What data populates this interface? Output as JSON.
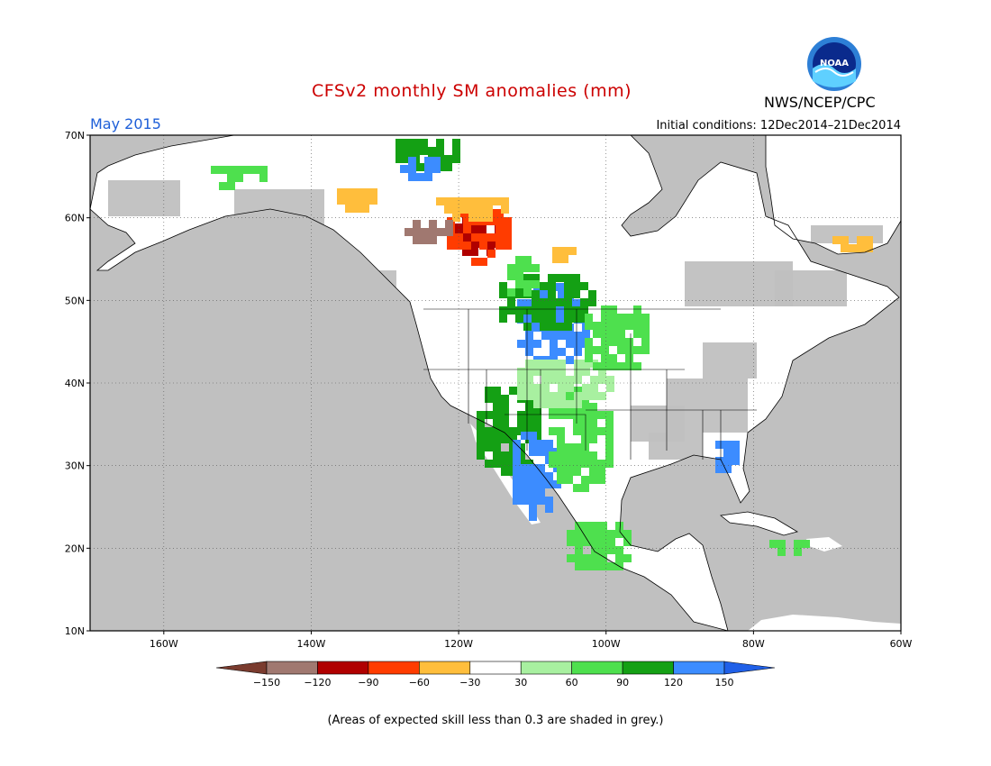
{
  "title": "CFSv2 monthly SM anomalies (mm)",
  "valid_month": "May 2015",
  "initial_conditions": "Initial conditions: 12Dec2014–21Dec2014",
  "agency": "NWS/NCEP/CPC",
  "logo_text": "NOAA",
  "footnote": "(Areas of expected skill less than 0.3 are shaded in grey.)",
  "colors": {
    "title": "#cc0000",
    "month": "#1e5fd8",
    "no_skill": "#c0c0c0",
    "land": "#ffffff"
  },
  "map": {
    "lon_ticks": [
      {
        "value": -160,
        "label": "160W"
      },
      {
        "value": -140,
        "label": "140W"
      },
      {
        "value": -120,
        "label": "120W"
      },
      {
        "value": -100,
        "label": "100W"
      },
      {
        "value": -80,
        "label": "80W"
      },
      {
        "value": -60,
        "label": "60W"
      }
    ],
    "lat_ticks": [
      {
        "value": 10,
        "label": "10N"
      },
      {
        "value": 20,
        "label": "20N"
      },
      {
        "value": 30,
        "label": "30N"
      },
      {
        "value": 40,
        "label": "40N"
      },
      {
        "value": 50,
        "label": "50N"
      },
      {
        "value": 60,
        "label": "60N"
      },
      {
        "value": 70,
        "label": "70N"
      }
    ],
    "lon_range": [
      -170,
      -60
    ],
    "lat_range": [
      10,
      70
    ]
  },
  "legend": {
    "bins": [
      {
        "color": "#7a3b2e"
      },
      {
        "color": "#a07870"
      },
      {
        "color": "#b00000"
      },
      {
        "color": "#ff3c00"
      },
      {
        "color": "#ffbe3c"
      },
      {
        "color": "#ffffff"
      },
      {
        "color": "#a8f0a0"
      },
      {
        "color": "#4ee04e"
      },
      {
        "color": "#14a014"
      },
      {
        "color": "#3c8cff"
      },
      {
        "color": "#2060e8"
      }
    ],
    "ticks": [
      "−150",
      "−120",
      "−90",
      "−60",
      "−30",
      "30",
      "60",
      "90",
      "120",
      "150"
    ]
  }
}
